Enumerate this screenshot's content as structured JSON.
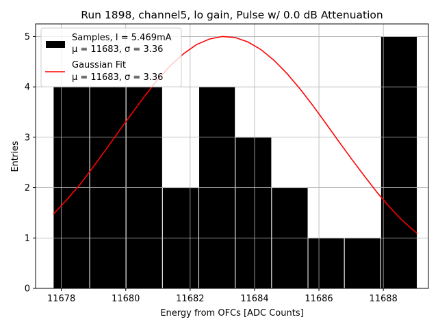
{
  "chart_data": {
    "type": "histogram",
    "title": "Run 1898, channel5, lo gain, Pulse w/ 0.0 dB Attenuation",
    "xlabel": "Energy from OFCs [ADC Counts]",
    "ylabel": "Entries",
    "xlim": [
      11677.2,
      11689.4
    ],
    "ylim": [
      0,
      5.25
    ],
    "xticks": [
      11678,
      11680,
      11682,
      11684,
      11686,
      11688
    ],
    "yticks": [
      0,
      1,
      2,
      3,
      4,
      5
    ],
    "grid": true,
    "legend_position": "top-left",
    "histogram": {
      "name": "Samples, I = 5.469mA",
      "stats": "μ = 11683, σ = 3.36",
      "color": "#000000",
      "bin_edges": [
        11677.75,
        11678.88,
        11680.01,
        11681.14,
        11682.27,
        11683.4,
        11684.53,
        11685.66,
        11686.79,
        11687.92,
        11689.05
      ],
      "counts": [
        4,
        4,
        4,
        2,
        4,
        3,
        2,
        1,
        1,
        5
      ]
    },
    "fit": {
      "name": "Gaussian Fit",
      "stats": "μ = 11683, σ = 3.36",
      "color": "#ff0000",
      "x": [
        11677.75,
        11678.2,
        11678.6,
        11679.0,
        11679.4,
        11679.8,
        11680.2,
        11680.6,
        11681.0,
        11681.4,
        11681.8,
        11682.2,
        11682.6,
        11683.0,
        11683.4,
        11683.8,
        11684.2,
        11684.6,
        11685.0,
        11685.4,
        11685.8,
        11686.2,
        11686.6,
        11687.0,
        11687.4,
        11687.8,
        11688.2,
        11688.6,
        11689.05
      ],
      "y": [
        1.47,
        1.78,
        2.08,
        2.42,
        2.77,
        3.13,
        3.48,
        3.83,
        4.15,
        4.43,
        4.66,
        4.84,
        4.95,
        5.0,
        4.98,
        4.89,
        4.74,
        4.53,
        4.27,
        3.97,
        3.64,
        3.29,
        2.93,
        2.58,
        2.24,
        1.91,
        1.61,
        1.34,
        1.09
      ]
    }
  }
}
